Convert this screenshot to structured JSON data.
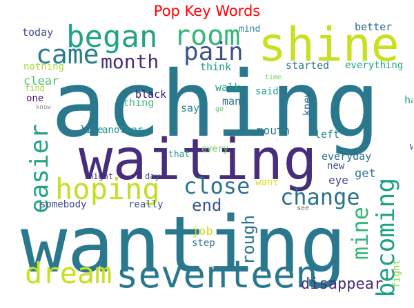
{
  "title": "Pop Key Words",
  "colors": {
    "title": "#ff0000",
    "palette": [
      "#440154",
      "#46337e",
      "#365c8d",
      "#277f8e",
      "#1fa187",
      "#4ac16d",
      "#a0da39",
      "#d2e21b",
      "#fde725"
    ]
  },
  "words": [
    {
      "text": "aching",
      "color": "#2a788e"
    },
    {
      "text": "wanting",
      "color": "#2a788e"
    },
    {
      "text": "waiting",
      "color": "#472d7b"
    },
    {
      "text": "shine",
      "color": "#c8e020"
    },
    {
      "text": "seventeen",
      "color": "#2a788e"
    },
    {
      "text": "began",
      "color": "#20a386"
    },
    {
      "text": "room",
      "color": "#35b779"
    },
    {
      "text": "came",
      "color": "#287c8e"
    },
    {
      "text": "pain",
      "color": "#3b528b"
    },
    {
      "text": "month",
      "color": "#472d7b"
    },
    {
      "text": "hoping",
      "color": "#c2df23"
    },
    {
      "text": "dream",
      "color": "#c8e020"
    },
    {
      "text": "close",
      "color": "#2c728e"
    },
    {
      "text": "change",
      "color": "#2c728e"
    },
    {
      "text": "becoming",
      "color": "#1fa187"
    },
    {
      "text": "easier",
      "color": "#20a386"
    },
    {
      "text": "mine",
      "color": "#35b779"
    },
    {
      "text": "rough",
      "color": "#2c728e"
    },
    {
      "text": "end",
      "color": "#3b528b"
    },
    {
      "text": "disappear",
      "color": "#472d7b"
    },
    {
      "text": "today",
      "color": "#3e4c8a"
    },
    {
      "text": "mind",
      "color": "#26828e"
    },
    {
      "text": "better",
      "color": "#31688e"
    },
    {
      "text": "nothing",
      "color": "#a8db34"
    },
    {
      "text": "think",
      "color": "#1f9a8a"
    },
    {
      "text": "started",
      "color": "#2a788e"
    },
    {
      "text": "everything",
      "color": "#1fa187"
    },
    {
      "text": "time",
      "color": "#7ad151"
    },
    {
      "text": "clear",
      "color": "#4ec36b"
    },
    {
      "text": "find",
      "color": "#a5db36"
    },
    {
      "text": "walk",
      "color": "#1f9e89"
    },
    {
      "text": "said",
      "color": "#1fa187"
    },
    {
      "text": "knew",
      "color": "#31688e"
    },
    {
      "text": "hard",
      "color": "#20a386"
    },
    {
      "text": "one",
      "color": "#471164"
    },
    {
      "text": "black",
      "color": "#3b0f70"
    },
    {
      "text": "thing",
      "color": "#3bbb75"
    },
    {
      "text": "many",
      "color": "#2e6e8e"
    },
    {
      "text": "know",
      "color": "#8b8b8b"
    },
    {
      "text": "say",
      "color": "#24878e"
    },
    {
      "text": "go",
      "color": "#5ac864"
    },
    {
      "text": "life",
      "color": "#25838e"
    },
    {
      "text": "another",
      "color": "#21918c"
    },
    {
      "text": "mouth",
      "color": "#2c728e"
    },
    {
      "text": "left",
      "color": "#277f8e"
    },
    {
      "text": "way",
      "color": "#46337e"
    },
    {
      "text": "that",
      "color": "#1fa187"
    },
    {
      "text": "every",
      "color": "#6ece58"
    },
    {
      "text": "everyday",
      "color": "#2e6e8e"
    },
    {
      "text": "new",
      "color": "#3b528b"
    },
    {
      "text": "night",
      "color": "#482878"
    },
    {
      "text": "day",
      "color": "#3b528b"
    },
    {
      "text": "want",
      "color": "#d8e219"
    },
    {
      "text": "get",
      "color": "#2a788e"
    },
    {
      "text": "eye",
      "color": "#3e4a89"
    },
    {
      "text": "somebody",
      "color": "#3e4a89"
    },
    {
      "text": "really",
      "color": "#3b528b"
    },
    {
      "text": "see",
      "color": "#6b6b6b"
    },
    {
      "text": "fight",
      "color": "#86d549"
    },
    {
      "text": "job",
      "color": "#c8e020"
    },
    {
      "text": "step",
      "color": "#2c728e"
    }
  ]
}
